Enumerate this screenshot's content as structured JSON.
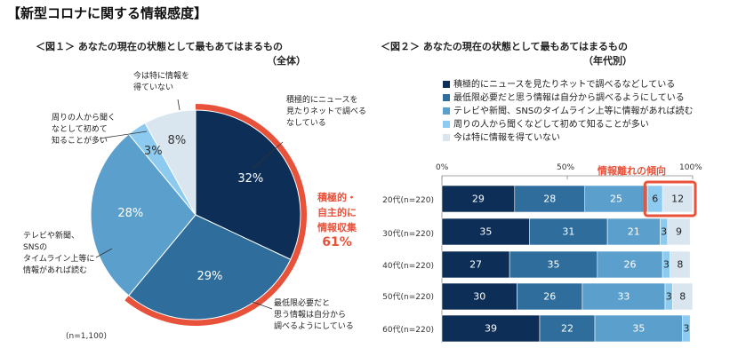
{
  "page_title": "【新型コロナに関する情報感度】",
  "fig1": {
    "title": "＜図１＞ あなたの現在の状態として最もあてはまるもの",
    "subtitle": "（全体）",
    "n_label": "(n=1,100)",
    "highlight_lines": [
      "積極的・",
      "自主的に",
      "情報収集"
    ],
    "highlight_value": "61%",
    "callouts": [
      {
        "lines": [
          "積極的にニュースを",
          "見たりネットで調べる",
          "なしている"
        ]
      },
      {
        "lines": [
          "最低限必要だと",
          "思う情報は自分から",
          "調べるようにしている"
        ]
      },
      {
        "lines": [
          "テレビや新聞、",
          "SNSの",
          "タイムライン上等に",
          "情報があれば読む"
        ]
      },
      {
        "lines": [
          "周りの人から聞く",
          "なとして初めて",
          "知ることが多い"
        ]
      },
      {
        "lines": [
          "今は特に情報を",
          "得ていない"
        ]
      }
    ]
  },
  "fig2": {
    "title": "＜図２＞ あなたの現在の状態として最もあてはまるもの",
    "subtitle": "（年代別）",
    "tilt_label": "情報離れの傾向",
    "axis_ticks": [
      "0%",
      "50%",
      "100%"
    ]
  },
  "colors": {
    "c1": "#0c2e57",
    "c2": "#2e6d9c",
    "c3": "#5b9fcd",
    "c4": "#8dcaf0",
    "c5": "#d9e6f0",
    "highlight": "#e8523a"
  },
  "chart_data": [
    {
      "type": "pie",
      "title": "＜図１＞ あなたの現在の状態として最もあてはまるもの",
      "slices": [
        {
          "label": "積極的にニュースを見たりネットで調べるなどしている",
          "value": 32,
          "value_label": "32%"
        },
        {
          "label": "最低限必要だと思う情報は自分から調べるようにしている",
          "value": 29,
          "value_label": "29%"
        },
        {
          "label": "テレビや新聞、SNSのタイムライン上等に情報があれば読む",
          "value": 28,
          "value_label": "28%"
        },
        {
          "label": "周りの人から聞くなどして初めて知ることが多い",
          "value": 3,
          "value_label": "3%"
        },
        {
          "label": "今は特に情報を得ていない",
          "value": 8,
          "value_label": "8%"
        }
      ]
    },
    {
      "type": "bar",
      "orientation": "horizontal",
      "stacked": true,
      "title": "＜図２＞ あなたの現在の状態として最もあてはまるもの",
      "xlim": [
        0,
        100
      ],
      "categories": [
        "20代(n=220)",
        "30代(n=220)",
        "40代(n=220)",
        "50代(n=220)",
        "60代(n=220)"
      ],
      "series": [
        {
          "name": "積極的にニュースを見たりネットで調べるなどしている",
          "values": [
            29,
            35,
            27,
            30,
            39
          ]
        },
        {
          "name": "最低限必要だと思う情報は自分から調べるようにしている",
          "values": [
            28,
            31,
            35,
            26,
            22
          ]
        },
        {
          "name": "テレビや新聞、SNSのタイムライン上等に情報があれば読む",
          "values": [
            25,
            21,
            26,
            33,
            35
          ]
        },
        {
          "name": "周りの人から聞くなどして初めて知ることが多い",
          "values": [
            6,
            3,
            3,
            3,
            3
          ]
        },
        {
          "name": "今は特に情報を得ていない",
          "values": [
            12,
            9,
            8,
            8,
            0
          ]
        }
      ]
    }
  ]
}
